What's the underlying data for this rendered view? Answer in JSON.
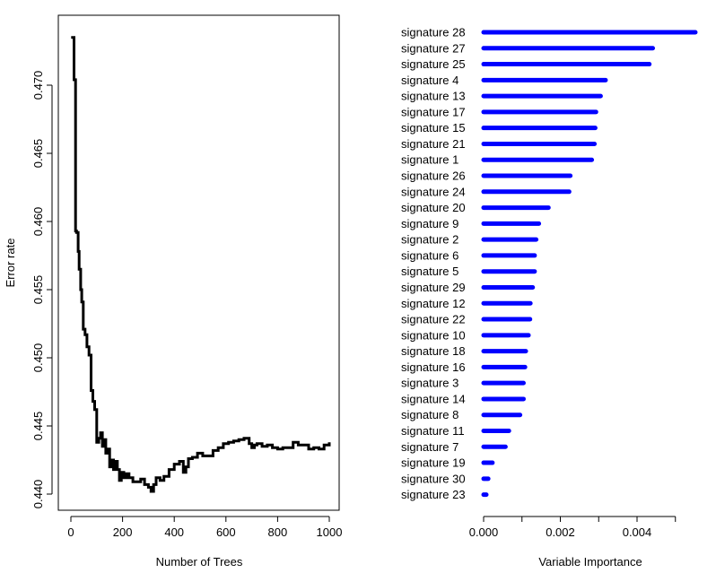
{
  "chart_data": [
    {
      "type": "line",
      "title": "",
      "xlabel": "Number of Trees",
      "ylabel": "Error rate",
      "xlim": [
        0,
        1000
      ],
      "ylim": [
        0.4394,
        0.4745
      ],
      "xticks": [
        0,
        200,
        400,
        600,
        800,
        1000
      ],
      "yticks": [
        0.44,
        0.445,
        0.45,
        0.455,
        0.46,
        0.465,
        0.47
      ],
      "ytick_labels": [
        "0.440",
        "0.445",
        "0.450",
        "0.455",
        "0.460",
        "0.465",
        "0.470"
      ],
      "series": [
        {
          "color": "#000000",
          "x": [
            1,
            10,
            12,
            18,
            22,
            28,
            32,
            38,
            42,
            48,
            55,
            62,
            70,
            78,
            85,
            92,
            100,
            108,
            115,
            122,
            128,
            135,
            140,
            150,
            158,
            165,
            172,
            180,
            188,
            195,
            205,
            215,
            225,
            240,
            255,
            270,
            285,
            300,
            310,
            320,
            330,
            345,
            360,
            380,
            400,
            420,
            435,
            445,
            455,
            470,
            490,
            510,
            530,
            550,
            570,
            590,
            610,
            630,
            650,
            670,
            690,
            700,
            710,
            720,
            740,
            760,
            780,
            800,
            820,
            840,
            860,
            880,
            900,
            920,
            940,
            960,
            980,
            1000
          ],
          "y": [
            0.4735,
            0.4735,
            0.4704,
            0.4593,
            0.4592,
            0.4578,
            0.4565,
            0.455,
            0.4541,
            0.4521,
            0.4517,
            0.4508,
            0.4502,
            0.4476,
            0.4468,
            0.4462,
            0.4438,
            0.4441,
            0.4445,
            0.4435,
            0.444,
            0.443,
            0.4433,
            0.442,
            0.4425,
            0.4418,
            0.4424,
            0.4418,
            0.441,
            0.4416,
            0.4412,
            0.4415,
            0.4412,
            0.4409,
            0.4409,
            0.4411,
            0.4407,
            0.4405,
            0.4402,
            0.4407,
            0.4412,
            0.441,
            0.4413,
            0.4418,
            0.4422,
            0.4424,
            0.4416,
            0.442,
            0.4426,
            0.4427,
            0.443,
            0.4428,
            0.4428,
            0.4432,
            0.4434,
            0.4437,
            0.4438,
            0.4439,
            0.444,
            0.4441,
            0.4437,
            0.4434,
            0.4436,
            0.4437,
            0.4435,
            0.4436,
            0.4434,
            0.4433,
            0.4434,
            0.4434,
            0.4438,
            0.4436,
            0.4436,
            0.4433,
            0.4434,
            0.4433,
            0.4436,
            0.4438
          ]
        }
      ]
    },
    {
      "type": "bar",
      "orientation": "horizontal",
      "title": "",
      "xlabel": "Variable Importance",
      "ylabel": "",
      "xlim": [
        0,
        0.0056
      ],
      "xticks": [
        0.0,
        0.001,
        0.002,
        0.003,
        0.004,
        0.005
      ],
      "xtick_labels": [
        "0.000",
        "",
        "0.002",
        "",
        "0.004",
        ""
      ],
      "bar_color": "#0000ff",
      "categories": [
        "signature 28",
        "signature 27",
        "signature 25",
        "signature 4",
        "signature 13",
        "signature 17",
        "signature 15",
        "signature 21",
        "signature 1",
        "signature 26",
        "signature 24",
        "signature 20",
        "signature 9",
        "signature 2",
        "signature 6",
        "signature 5",
        "signature 29",
        "signature 12",
        "signature 22",
        "signature 10",
        "signature 18",
        "signature 16",
        "signature 3",
        "signature 14",
        "signature 8",
        "signature 11",
        "signature 7",
        "signature 19",
        "signature 30",
        "signature 23"
      ],
      "values": [
        0.00552,
        0.00441,
        0.00432,
        0.00318,
        0.00305,
        0.00293,
        0.00291,
        0.00289,
        0.00282,
        0.00226,
        0.00223,
        0.00169,
        0.00144,
        0.00137,
        0.00133,
        0.00133,
        0.00128,
        0.00122,
        0.00121,
        0.00117,
        0.0011,
        0.00108,
        0.00104,
        0.00104,
        0.00095,
        0.00066,
        0.00057,
        0.00023,
        0.00012,
        7e-05
      ]
    }
  ]
}
